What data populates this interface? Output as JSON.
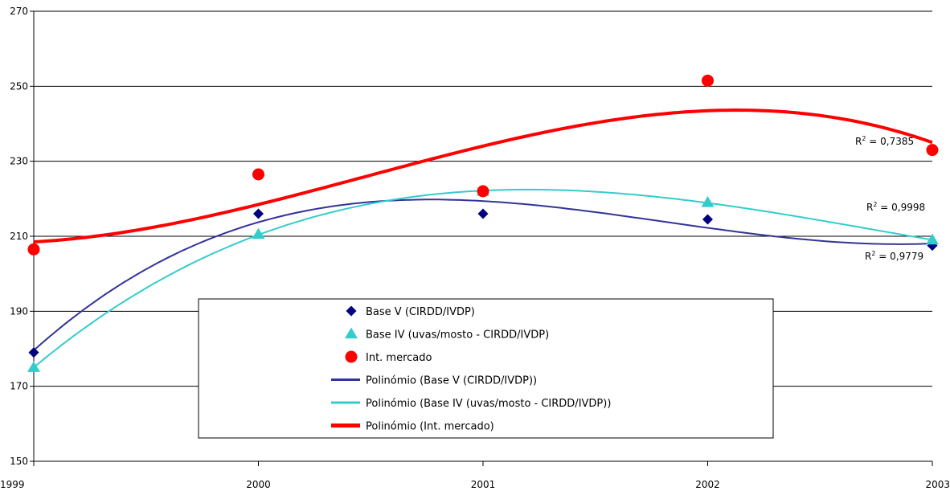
{
  "chart_data": {
    "type": "scatter",
    "title": "",
    "xlabel": "",
    "ylabel": "",
    "categories": [
      "1999",
      "2000",
      "2001",
      "2002",
      "2003"
    ],
    "ylim": [
      150,
      270
    ],
    "yticks": [
      "150",
      "170",
      "190",
      "210",
      "230",
      "250",
      "270"
    ],
    "grid": "horizontal",
    "legend_position": "bottom-center",
    "series": [
      {
        "name": "Base V (CIRDD/IVDP)",
        "marker": "diamond",
        "color": "#000080",
        "values": [
          179,
          216,
          216,
          214.5,
          207.5
        ]
      },
      {
        "name": "Base IV (uvas/mosto - CIRDD/IVDP)",
        "marker": "triangle",
        "color": "#33CCCC",
        "values": [
          175,
          210.5,
          222,
          219,
          209
        ]
      },
      {
        "name": "Int. mercado",
        "marker": "circle",
        "color": "#FF0000",
        "values": [
          206.5,
          226.5,
          222,
          251.5,
          233
        ]
      }
    ],
    "trendlines": [
      {
        "name": "Polinómio (Base V (CIRDD/IVDP))",
        "color": "#333399",
        "r2_label": "R",
        "r2_value": " = 0,9779"
      },
      {
        "name": "Polinómio (Base IV (uvas/mosto - CIRDD/IVDP))",
        "color": "#33CCCC",
        "r2_label": "R",
        "r2_value": " = 0,9998"
      },
      {
        "name": "Polinómio (Int. mercado)",
        "color": "#FF0000",
        "r2_label": "R",
        "r2_value": " = 0,7385"
      }
    ],
    "r2_superscript": "2"
  }
}
